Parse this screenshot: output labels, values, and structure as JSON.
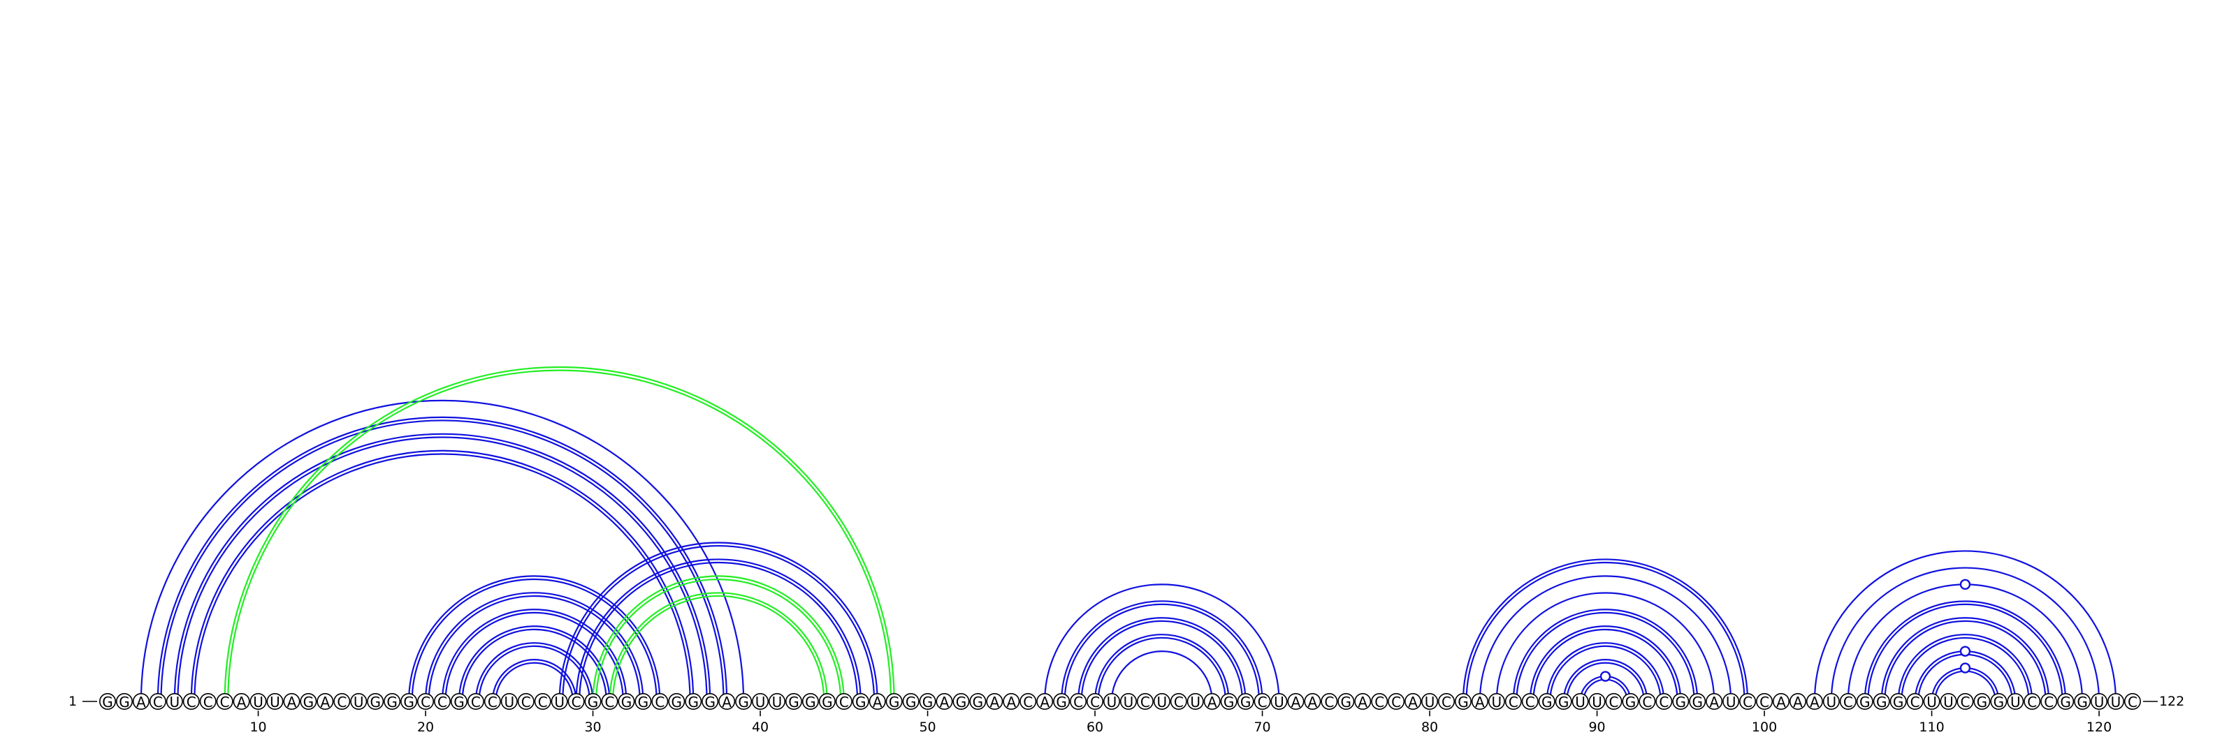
{
  "sequence": "GGACUCCCAUUAGACUGGGCCGCCUCCUCGCGGCGGGAGUUGGGCGAGGGAGGAACAGCCUUCUCUAGGCUAACGACCAUCGAUCCGGUUCGCCGGAUCCAAAUCGGGCUUCGGUCCGGUUC",
  "start_label": "1",
  "end_label": "122",
  "ticks": [
    "10",
    "20",
    "30",
    "40",
    "50",
    "60",
    "70",
    "80",
    "90",
    "100",
    "110",
    "120"
  ],
  "tick_positions": [
    10,
    20,
    30,
    40,
    50,
    60,
    70,
    80,
    90,
    100,
    110,
    120
  ],
  "colors": {
    "primary": "#1010e0",
    "pseudoknot": "#22ee22"
  },
  "arcs": [
    {
      "i": 3,
      "j": 39,
      "color": "primary"
    },
    {
      "i": 4,
      "j": 38,
      "color": "primary",
      "double": true
    },
    {
      "i": 5,
      "j": 37,
      "color": "primary",
      "double": true
    },
    {
      "i": 6,
      "j": 36,
      "color": "primary",
      "double": true
    },
    {
      "i": 8,
      "j": 48,
      "color": "pseudoknot",
      "double": true
    },
    {
      "i": 19,
      "j": 34,
      "color": "primary",
      "double": true
    },
    {
      "i": 20,
      "j": 33,
      "color": "primary",
      "double": true
    },
    {
      "i": 21,
      "j": 32,
      "color": "primary",
      "double": true
    },
    {
      "i": 22,
      "j": 31,
      "color": "primary",
      "double": true
    },
    {
      "i": 23,
      "j": 30,
      "color": "primary",
      "double": true
    },
    {
      "i": 24,
      "j": 29,
      "color": "primary",
      "double": true
    },
    {
      "i": 28,
      "j": 47,
      "color": "primary",
      "double": true
    },
    {
      "i": 29,
      "j": 46,
      "color": "primary",
      "double": true
    },
    {
      "i": 30,
      "j": 45,
      "color": "pseudoknot",
      "double": true
    },
    {
      "i": 31,
      "j": 44,
      "color": "pseudoknot",
      "double": true
    },
    {
      "i": 57,
      "j": 71,
      "color": "primary"
    },
    {
      "i": 58,
      "j": 70,
      "color": "primary",
      "double": true
    },
    {
      "i": 59,
      "j": 69,
      "color": "primary",
      "double": true
    },
    {
      "i": 60,
      "j": 68,
      "color": "primary",
      "double": true
    },
    {
      "i": 61,
      "j": 67,
      "color": "primary"
    },
    {
      "i": 82,
      "j": 99,
      "color": "primary",
      "double": true
    },
    {
      "i": 83,
      "j": 98,
      "color": "primary"
    },
    {
      "i": 84,
      "j": 97,
      "color": "primary"
    },
    {
      "i": 85,
      "j": 96,
      "color": "primary",
      "double": true
    },
    {
      "i": 86,
      "j": 95,
      "color": "primary",
      "double": true
    },
    {
      "i": 87,
      "j": 94,
      "color": "primary",
      "double": true
    },
    {
      "i": 88,
      "j": 93,
      "color": "primary",
      "double": true
    },
    {
      "i": 89,
      "j": 92,
      "color": "primary",
      "double": true,
      "bulge": true
    },
    {
      "i": 103,
      "j": 121,
      "color": "primary"
    },
    {
      "i": 104,
      "j": 120,
      "color": "primary"
    },
    {
      "i": 105,
      "j": 119,
      "color": "primary",
      "bulge": true
    },
    {
      "i": 106,
      "j": 118,
      "color": "primary",
      "double": true
    },
    {
      "i": 107,
      "j": 117,
      "color": "primary",
      "double": true
    },
    {
      "i": 108,
      "j": 116,
      "color": "primary",
      "double": true
    },
    {
      "i": 109,
      "j": 115,
      "color": "primary",
      "double": true,
      "bulge": true
    },
    {
      "i": 110,
      "j": 114,
      "color": "primary",
      "double": true,
      "bulge": true
    }
  ]
}
